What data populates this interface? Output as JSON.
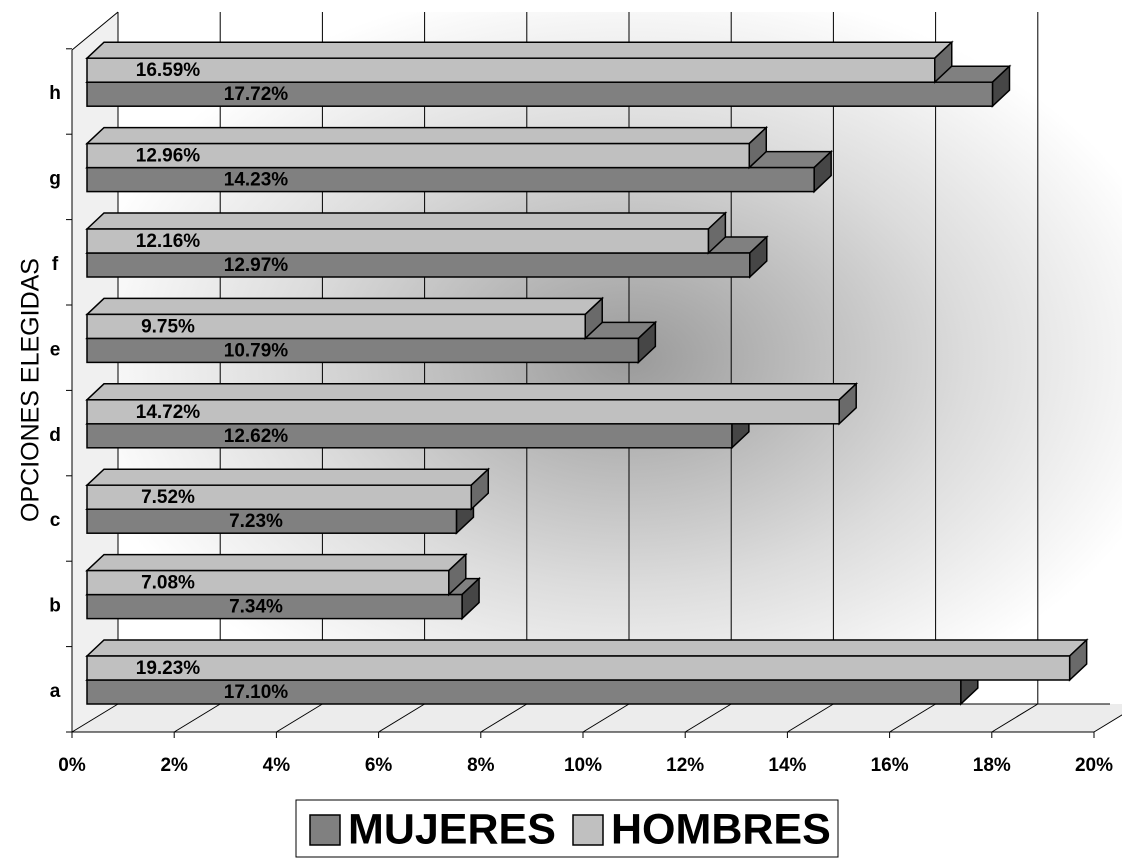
{
  "chart_data": {
    "type": "bar",
    "orientation": "horizontal",
    "y_label": "OPCIONES ELEGIDAS",
    "categories": [
      "a",
      "b",
      "c",
      "d",
      "e",
      "f",
      "g",
      "h"
    ],
    "series": [
      {
        "name": "MUJERES",
        "color": "#808080",
        "values": [
          17.1,
          7.34,
          7.23,
          12.62,
          10.79,
          12.97,
          14.23,
          17.72
        ],
        "value_labels": [
          "17.10%",
          "7.34%",
          "7.23%",
          "12.62%",
          "10.79%",
          "12.97%",
          "14.23%",
          "17.72%"
        ]
      },
      {
        "name": "HOMBRES",
        "color": "#c0c0c0",
        "values": [
          19.23,
          7.08,
          7.52,
          14.72,
          9.75,
          12.16,
          12.96,
          16.59
        ],
        "value_labels": [
          "19.23%",
          "7.08%",
          "7.52%",
          "14.72%",
          "9.75%",
          "12.16%",
          "12.96%",
          "16.59%"
        ]
      }
    ],
    "xlim": [
      0,
      20
    ],
    "xticks": [
      {
        "value": 0,
        "label": "0%"
      },
      {
        "value": 2,
        "label": "2%"
      },
      {
        "value": 4,
        "label": "4%"
      },
      {
        "value": 6,
        "label": "6%"
      },
      {
        "value": 8,
        "label": "8%"
      },
      {
        "value": 10,
        "label": "10%"
      },
      {
        "value": 12,
        "label": "12%"
      },
      {
        "value": 14,
        "label": "14%"
      },
      {
        "value": 16,
        "label": "16%"
      },
      {
        "value": 18,
        "label": "18%"
      },
      {
        "value": 20,
        "label": "20%"
      }
    ],
    "grid": true,
    "legend": "bottom"
  }
}
